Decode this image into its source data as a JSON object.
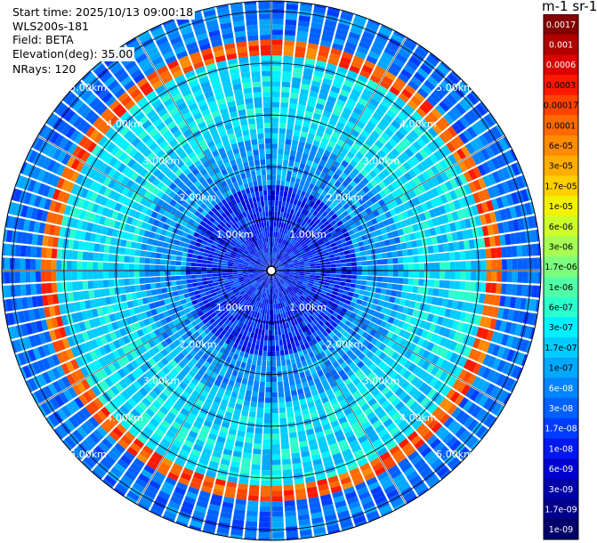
{
  "chart_data": {
    "type": "heatmap",
    "projection": "polar PPI",
    "info": {
      "start_time": "Start time: 2025/10/13 09:00:18",
      "instrument": "WLS200s-181",
      "field": "Field: BETA",
      "elevation": "Elevation(deg): 35.00",
      "nrays": "NRays: 120"
    },
    "n_rays": 120,
    "max_range_km": 5.2,
    "range_rings_km": [
      1,
      2,
      3,
      4,
      5
    ],
    "range_ring_labels": [
      "1.00km",
      "2.00km",
      "3.00km",
      "4.00km",
      "5.00km"
    ],
    "colorbar": {
      "unit_label": "m-1 sr-1",
      "ticks": [
        "0.0017",
        "0.001",
        "0.0006",
        "0.0003",
        "0.00017",
        "0.0001",
        "6e-05",
        "3e-05",
        "1.7e-05",
        "1e-05",
        "6e-06",
        "3e-06",
        "1.7e-06",
        "1e-06",
        "6e-07",
        "3e-07",
        "1.7e-07",
        "1e-07",
        "6e-08",
        "3e-08",
        "1.7e-08",
        "1e-08",
        "6e-09",
        "3e-09",
        "1.7e-09",
        "1e-09"
      ],
      "colors": [
        "#840000",
        "#b00000",
        "#dc0000",
        "#ff1800",
        "#ff4400",
        "#ff6a00",
        "#ff8c00",
        "#ffae00",
        "#ffcf00",
        "#f2f200",
        "#ccff2a",
        "#a6ff52",
        "#7cff7c",
        "#52ffa6",
        "#2affce",
        "#00f0ff",
        "#00ccff",
        "#00a8ff",
        "#0084ff",
        "#0060ff",
        "#003cff",
        "#0018f0",
        "#0000d0",
        "#0000aa",
        "#00008a",
        "#000068"
      ]
    },
    "layers_km": [
      {
        "from": 0.0,
        "to": 1.6,
        "beta": "1e-08"
      },
      {
        "from": 1.6,
        "to": 2.5,
        "beta": "6e-08"
      },
      {
        "from": 2.5,
        "to": 4.1,
        "beta": "1.7e-07"
      },
      {
        "from": 4.1,
        "to": 4.4,
        "beta": "0.0001",
        "note": "elevated aerosol/cloud ring (strongest toward south)"
      },
      {
        "from": 4.4,
        "to": 5.2,
        "beta": "3e-08"
      }
    ]
  }
}
